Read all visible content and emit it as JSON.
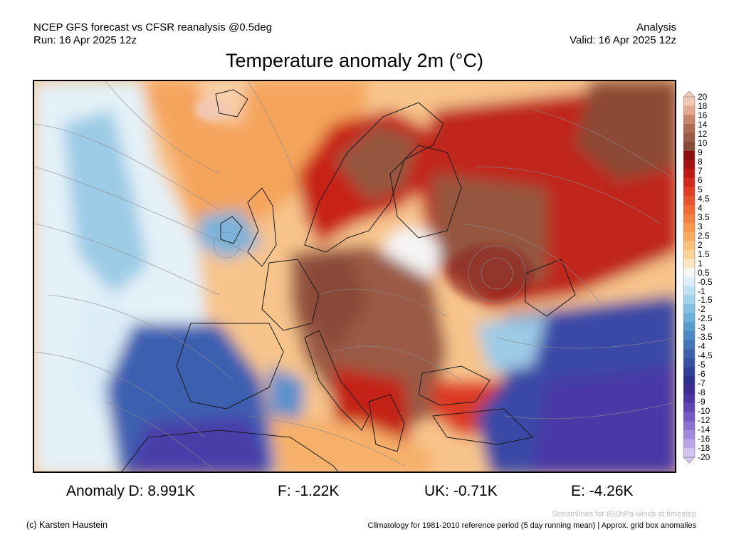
{
  "header": {
    "line1_left": "NCEP GFS forecast vs CFSR reanalysis @0.5deg",
    "line2_left": "Run: 16 Apr 2025 12z",
    "line1_right": "Analysis",
    "line2_right": "Valid: 16 Apr 2025 12z"
  },
  "title": "Temperature anomaly 2m (°C)",
  "colorbar": {
    "labels": [
      "20",
      "18",
      "16",
      "14",
      "12",
      "10",
      "9",
      "8",
      "7",
      "6",
      "5",
      "4.5",
      "4",
      "3.5",
      "3",
      "2.5",
      "2",
      "1.5",
      "1",
      "0.5",
      "-0.5",
      "-1",
      "-1.5",
      "-2",
      "-2.5",
      "-3",
      "-3.5",
      "-4",
      "-4.5",
      "-5",
      "-6",
      "-7",
      "-8",
      "-9",
      "-10",
      "-12",
      "-14",
      "-16",
      "-18",
      "-20"
    ],
    "colors": [
      "#f2c7b3",
      "#e3a98f",
      "#c98569",
      "#b06c52",
      "#9a5a44",
      "#8a4a38",
      "#8b0d0d",
      "#a61212",
      "#c01a16",
      "#d4291d",
      "#e03e25",
      "#e9552e",
      "#ef6b35",
      "#f3813f",
      "#f6974c",
      "#f8ac5f",
      "#f9c077",
      "#fad497",
      "#fbe6bf",
      "#f5f5f5",
      "#dbeefa",
      "#bee2f4",
      "#a1d3ec",
      "#84c2e3",
      "#6ab0d9",
      "#569dce",
      "#4b89c3",
      "#4376b8",
      "#3c63ad",
      "#3651a3",
      "#313f99",
      "#2d2f8c",
      "#3b2b92",
      "#4d36a3",
      "#6046b4",
      "#7659c4",
      "#8c70d2",
      "#a48adf",
      "#bba5ea",
      "#d3c3f3"
    ]
  },
  "stats": {
    "anomaly_d": "Anomaly D: 8.991K",
    "f": "F: -1.22K",
    "uk": "UK: -0.71K",
    "e": "E: -4.26K"
  },
  "footer": {
    "streamlines_note": "Streamlines for 850hPa winds at timestep",
    "climatology_note": "Climatology for 1981-2010 reference period (5 day running mean) | Approx. grid box anomalies",
    "credit": "(c) Karsten Haustein"
  }
}
